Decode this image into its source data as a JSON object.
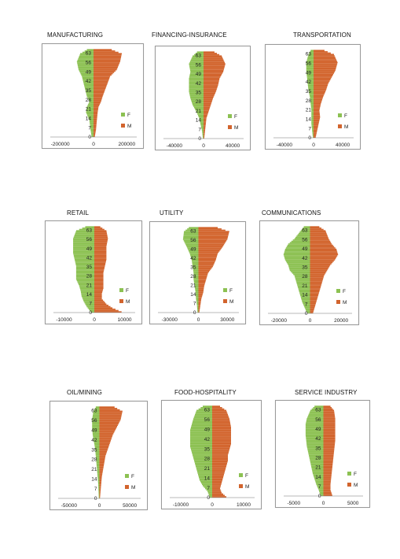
{
  "colors": {
    "female": "#8cc152",
    "male": "#d2642d"
  },
  "chart_data": [
    {
      "type": "bar",
      "title": "MANUFACTURING",
      "y_ticks": [
        "63",
        "56",
        "49",
        "42",
        "35",
        "28",
        "21",
        "14",
        "7",
        "0"
      ],
      "x_ticks": [
        "-200000",
        "0",
        "200000"
      ],
      "xlim": [
        -260000,
        260000
      ],
      "legend": [
        "F",
        "M"
      ],
      "female_profile": [
        [
          0,
          -12000
        ],
        [
          5,
          -18000
        ],
        [
          12,
          -25000
        ],
        [
          18,
          -45000
        ],
        [
          22,
          -40000
        ],
        [
          26,
          -25000
        ],
        [
          30,
          -40000
        ],
        [
          35,
          -50000
        ],
        [
          40,
          -60000
        ],
        [
          45,
          -70000
        ],
        [
          50,
          -90000
        ],
        [
          56,
          -100000
        ],
        [
          62,
          -80000
        ],
        [
          65,
          -40000
        ]
      ],
      "male_profile": [
        [
          0,
          8000
        ],
        [
          5,
          15000
        ],
        [
          12,
          20000
        ],
        [
          18,
          25000
        ],
        [
          22,
          30000
        ],
        [
          26,
          45000
        ],
        [
          30,
          55000
        ],
        [
          35,
          70000
        ],
        [
          40,
          85000
        ],
        [
          45,
          100000
        ],
        [
          50,
          140000
        ],
        [
          56,
          160000
        ],
        [
          62,
          170000
        ],
        [
          65,
          110000
        ]
      ]
    },
    {
      "type": "bar",
      "title": "FINANCING-INSURANCE",
      "y_ticks": [
        "63",
        "56",
        "49",
        "42",
        "35",
        "28",
        "21",
        "14",
        "7",
        "0"
      ],
      "x_ticks": [
        "-40000",
        "0",
        "40000"
      ],
      "xlim": [
        -55000,
        55000
      ],
      "legend": [
        "F",
        "M"
      ],
      "female_profile": [
        [
          0,
          -1000
        ],
        [
          5,
          -2000
        ],
        [
          10,
          -4000
        ],
        [
          15,
          -6000
        ],
        [
          20,
          -10000
        ],
        [
          25,
          -15000
        ],
        [
          30,
          -18000
        ],
        [
          35,
          -20000
        ],
        [
          40,
          -20000
        ],
        [
          45,
          -20000
        ],
        [
          50,
          -18000
        ],
        [
          56,
          -20000
        ],
        [
          62,
          -15000
        ],
        [
          65,
          -9000
        ]
      ],
      "male_profile": [
        [
          0,
          1000
        ],
        [
          5,
          2000
        ],
        [
          10,
          3000
        ],
        [
          15,
          4000
        ],
        [
          20,
          7000
        ],
        [
          25,
          10000
        ],
        [
          30,
          13000
        ],
        [
          35,
          17000
        ],
        [
          40,
          20000
        ],
        [
          45,
          22000
        ],
        [
          50,
          27000
        ],
        [
          56,
          30000
        ],
        [
          62,
          25000
        ],
        [
          65,
          15000
        ]
      ]
    },
    {
      "type": "bar",
      "title": "TRANSPORTATION",
      "y_ticks": [
        "63",
        "56",
        "49",
        "42",
        "35",
        "28",
        "21",
        "14",
        "7",
        "0"
      ],
      "x_ticks": [
        "-40000",
        "0",
        "40000"
      ],
      "xlim": [
        -55000,
        55000
      ],
      "legend": [
        "F",
        "M"
      ],
      "female_profile": [
        [
          0,
          -1000
        ],
        [
          5,
          -2000
        ],
        [
          10,
          -3000
        ],
        [
          15,
          -3000
        ],
        [
          20,
          -3000
        ],
        [
          25,
          -4000
        ],
        [
          30,
          -5000
        ],
        [
          35,
          -7000
        ],
        [
          40,
          -8000
        ],
        [
          45,
          -9000
        ],
        [
          50,
          -10000
        ],
        [
          56,
          -10000
        ],
        [
          62,
          -7000
        ],
        [
          65,
          -4000
        ]
      ],
      "male_profile": [
        [
          0,
          3000
        ],
        [
          5,
          5000
        ],
        [
          10,
          7000
        ],
        [
          15,
          9000
        ],
        [
          20,
          8000
        ],
        [
          25,
          10000
        ],
        [
          30,
          13000
        ],
        [
          35,
          17000
        ],
        [
          40,
          20000
        ],
        [
          45,
          25000
        ],
        [
          50,
          30000
        ],
        [
          56,
          33000
        ],
        [
          62,
          28000
        ],
        [
          65,
          15000
        ]
      ]
    },
    {
      "type": "bar",
      "title": "RETAIL",
      "y_ticks": [
        "63",
        "56",
        "49",
        "42",
        "35",
        "28",
        "21",
        "14",
        "7",
        "0"
      ],
      "x_ticks": [
        "-10000",
        "0",
        "10000"
      ],
      "xlim": [
        -13500,
        13500
      ],
      "legend": [
        "F",
        "M"
      ],
      "female_profile": [
        [
          0,
          -1200
        ],
        [
          4,
          -2500
        ],
        [
          8,
          -3500
        ],
        [
          12,
          -4200
        ],
        [
          16,
          -4500
        ],
        [
          20,
          -5000
        ],
        [
          25,
          -6000
        ],
        [
          30,
          -6000
        ],
        [
          35,
          -6000
        ],
        [
          40,
          -6500
        ],
        [
          45,
          -7000
        ],
        [
          50,
          -7000
        ],
        [
          56,
          -7000
        ],
        [
          62,
          -6000
        ],
        [
          65,
          -3000
        ]
      ],
      "male_profile": [
        [
          0,
          9000
        ],
        [
          3,
          6000
        ],
        [
          6,
          4000
        ],
        [
          10,
          2500
        ],
        [
          14,
          2500
        ],
        [
          18,
          3000
        ],
        [
          22,
          3000
        ],
        [
          26,
          3000
        ],
        [
          30,
          3000
        ],
        [
          35,
          3500
        ],
        [
          40,
          4000
        ],
        [
          45,
          4000
        ],
        [
          50,
          4000
        ],
        [
          56,
          4500
        ],
        [
          62,
          4000
        ],
        [
          65,
          2000
        ]
      ]
    },
    {
      "type": "bar",
      "title": "UTILITY",
      "y_ticks": [
        "63",
        "56",
        "49",
        "42",
        "35",
        "28",
        "21",
        "14",
        "7",
        "0"
      ],
      "x_ticks": [
        "-30000",
        "0",
        "30000"
      ],
      "xlim": [
        -42000,
        42000
      ],
      "legend": [
        "F",
        "M"
      ],
      "female_profile": [
        [
          0,
          -1000
        ],
        [
          5,
          -1500
        ],
        [
          10,
          -2500
        ],
        [
          15,
          -3000
        ],
        [
          20,
          -4000
        ],
        [
          25,
          -5000
        ],
        [
          30,
          -5000
        ],
        [
          35,
          -6000
        ],
        [
          40,
          -7000
        ],
        [
          45,
          -9000
        ],
        [
          50,
          -12000
        ],
        [
          56,
          -16000
        ],
        [
          62,
          -15000
        ],
        [
          65,
          -10000
        ]
      ],
      "male_profile": [
        [
          0,
          1000
        ],
        [
          5,
          2000
        ],
        [
          10,
          3000
        ],
        [
          15,
          5000
        ],
        [
          20,
          6000
        ],
        [
          25,
          8000
        ],
        [
          30,
          10000
        ],
        [
          35,
          15000
        ],
        [
          40,
          18000
        ],
        [
          45,
          20000
        ],
        [
          50,
          25000
        ],
        [
          56,
          30000
        ],
        [
          62,
          32000
        ],
        [
          65,
          20000
        ]
      ]
    },
    {
      "type": "bar",
      "title": "COMMUNICATIONS",
      "y_ticks": [
        "63",
        "56",
        "49",
        "42",
        "35",
        "28",
        "21",
        "14",
        "7",
        "0"
      ],
      "x_ticks": [
        "-20000",
        "0",
        "20000"
      ],
      "xlim": [
        -27000,
        27000
      ],
      "legend": [
        "F",
        "M"
      ],
      "female_profile": [
        [
          0,
          -2000
        ],
        [
          4,
          -3500
        ],
        [
          8,
          -5000
        ],
        [
          12,
          -6000
        ],
        [
          16,
          -7000
        ],
        [
          20,
          -8000
        ],
        [
          24,
          -9000
        ],
        [
          28,
          -10000
        ],
        [
          32,
          -13000
        ],
        [
          36,
          -14000
        ],
        [
          40,
          -16000
        ],
        [
          44,
          -17000
        ],
        [
          48,
          -16000
        ],
        [
          52,
          -14000
        ],
        [
          56,
          -10000
        ],
        [
          62,
          -6000
        ],
        [
          65,
          -4000
        ]
      ],
      "male_profile": [
        [
          0,
          2000
        ],
        [
          4,
          3000
        ],
        [
          8,
          4000
        ],
        [
          12,
          5000
        ],
        [
          16,
          6000
        ],
        [
          20,
          7000
        ],
        [
          24,
          8000
        ],
        [
          28,
          9000
        ],
        [
          32,
          11000
        ],
        [
          36,
          13000
        ],
        [
          40,
          16000
        ],
        [
          44,
          18000
        ],
        [
          48,
          17000
        ],
        [
          52,
          14000
        ],
        [
          56,
          12000
        ],
        [
          62,
          10000
        ],
        [
          65,
          6000
        ]
      ]
    },
    {
      "type": "bar",
      "title": "OIL/MINING",
      "y_ticks": [
        "63",
        "56",
        "49",
        "42",
        "35",
        "28",
        "21",
        "14",
        "7",
        "0"
      ],
      "x_ticks": [
        "-50000",
        "0",
        "50000"
      ],
      "xlim": [
        -68000,
        68000
      ],
      "legend": [
        "F",
        "M"
      ],
      "female_profile": [
        [
          0,
          -1000
        ],
        [
          5,
          -1500
        ],
        [
          10,
          -2000
        ],
        [
          15,
          -3000
        ],
        [
          20,
          -4000
        ],
        [
          25,
          -5000
        ],
        [
          30,
          -6000
        ],
        [
          35,
          -7000
        ],
        [
          40,
          -9000
        ],
        [
          45,
          -11000
        ],
        [
          50,
          -12000
        ],
        [
          56,
          -12000
        ],
        [
          62,
          -10000
        ],
        [
          65,
          -6000
        ]
      ],
      "male_profile": [
        [
          0,
          1000
        ],
        [
          5,
          2000
        ],
        [
          10,
          3000
        ],
        [
          15,
          4000
        ],
        [
          20,
          6000
        ],
        [
          25,
          8000
        ],
        [
          30,
          10000
        ],
        [
          35,
          14000
        ],
        [
          40,
          18000
        ],
        [
          45,
          22000
        ],
        [
          50,
          28000
        ],
        [
          56,
          35000
        ],
        [
          62,
          38000
        ],
        [
          65,
          25000
        ]
      ]
    },
    {
      "type": "bar",
      "title": "FOOD-HOSPITALITY",
      "y_ticks": [
        "63",
        "56",
        "49",
        "42",
        "35",
        "28",
        "21",
        "14",
        "7",
        "0"
      ],
      "x_ticks": [
        "-10000",
        "0",
        "10000"
      ],
      "xlim": [
        -13500,
        13500
      ],
      "legend": [
        "F",
        "M"
      ],
      "female_profile": [
        [
          0,
          -800
        ],
        [
          4,
          -1500
        ],
        [
          8,
          -3000
        ],
        [
          12,
          -4000
        ],
        [
          16,
          -4500
        ],
        [
          20,
          -5000
        ],
        [
          24,
          -5500
        ],
        [
          28,
          -6000
        ],
        [
          32,
          -6500
        ],
        [
          36,
          -7000
        ],
        [
          40,
          -7000
        ],
        [
          44,
          -7000
        ],
        [
          48,
          -7000
        ],
        [
          52,
          -6500
        ],
        [
          56,
          -6000
        ],
        [
          62,
          -5000
        ],
        [
          65,
          -3000
        ]
      ],
      "male_profile": [
        [
          0,
          4500
        ],
        [
          3,
          3000
        ],
        [
          6,
          2500
        ],
        [
          10,
          3000
        ],
        [
          14,
          3500
        ],
        [
          18,
          4000
        ],
        [
          22,
          4500
        ],
        [
          26,
          5000
        ],
        [
          30,
          5000
        ],
        [
          34,
          5500
        ],
        [
          38,
          6000
        ],
        [
          42,
          6000
        ],
        [
          46,
          6000
        ],
        [
          50,
          6000
        ],
        [
          56,
          5500
        ],
        [
          62,
          4500
        ],
        [
          65,
          2500
        ]
      ]
    },
    {
      "type": "bar",
      "title": "SERVICE INDUSTRY",
      "y_ticks": [
        "63",
        "56",
        "49",
        "42",
        "35",
        "28",
        "21",
        "14",
        "7",
        "0"
      ],
      "x_ticks": [
        "-5000",
        "0",
        "5000"
      ],
      "xlim": [
        -6700,
        6700
      ],
      "legend": [
        "F",
        "M"
      ],
      "female_profile": [
        [
          0,
          -500
        ],
        [
          4,
          -800
        ],
        [
          8,
          -1200
        ],
        [
          12,
          -1500
        ],
        [
          16,
          -1800
        ],
        [
          20,
          -2000
        ],
        [
          24,
          -2200
        ],
        [
          28,
          -2400
        ],
        [
          32,
          -2600
        ],
        [
          36,
          -2800
        ],
        [
          40,
          -2900
        ],
        [
          44,
          -3000
        ],
        [
          48,
          -3000
        ],
        [
          52,
          -3000
        ],
        [
          56,
          -2800
        ],
        [
          62,
          -2200
        ],
        [
          65,
          -1500
        ]
      ],
      "male_profile": [
        [
          0,
          1500
        ],
        [
          4,
          1200
        ],
        [
          8,
          1200
        ],
        [
          12,
          1300
        ],
        [
          16,
          1400
        ],
        [
          20,
          1500
        ],
        [
          24,
          1600
        ],
        [
          28,
          1700
        ],
        [
          32,
          1800
        ],
        [
          36,
          1900
        ],
        [
          40,
          2000
        ],
        [
          44,
          2000
        ],
        [
          48,
          2000
        ],
        [
          52,
          2000
        ],
        [
          56,
          2000
        ],
        [
          62,
          1800
        ],
        [
          65,
          1200
        ]
      ]
    }
  ]
}
